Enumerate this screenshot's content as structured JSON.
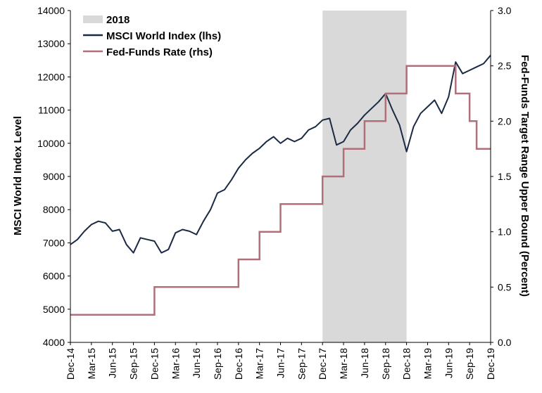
{
  "chart_data": {
    "type": "line",
    "ylabel": "MSCI World Index Level",
    "y2label": "Fed-Funds Target Range Upper Bound (Percent)",
    "ylim": [
      4000,
      14000
    ],
    "y2lim": [
      0.0,
      3.0
    ],
    "y_ticks": [
      "4000",
      "5000",
      "6000",
      "7000",
      "8000",
      "9000",
      "10000",
      "11000",
      "12000",
      "13000",
      "14000"
    ],
    "y2_ticks": [
      "0.0",
      "0.5",
      "1.0",
      "1.5",
      "2.0",
      "2.5",
      "3.0"
    ],
    "x_ticks": [
      "Dec-14",
      "Mar-15",
      "Jun-15",
      "Sep-15",
      "Dec-15",
      "Mar-16",
      "Jun-16",
      "Sep-16",
      "Dec-16",
      "Mar-17",
      "Jun-17",
      "Sep-17",
      "Dec-17",
      "Mar-18",
      "Jun-18",
      "Sep-18",
      "Dec-18",
      "Mar-19",
      "Jun-19",
      "Sep-19",
      "Dec-19"
    ],
    "legend_position": "top-left",
    "shaded_region": {
      "label": "2018",
      "start": "Dec-17",
      "end": "Dec-18",
      "color": "#d9d9d9"
    },
    "series": [
      {
        "name": "MSCI World Index (lhs)",
        "axis": "left",
        "color": "#1b2a44",
        "x": [
          "Dec-14",
          "Jan-15",
          "Feb-15",
          "Mar-15",
          "Apr-15",
          "May-15",
          "Jun-15",
          "Jul-15",
          "Aug-15",
          "Sep-15",
          "Oct-15",
          "Nov-15",
          "Dec-15",
          "Jan-16",
          "Feb-16",
          "Mar-16",
          "Apr-16",
          "May-16",
          "Jun-16",
          "Jul-16",
          "Aug-16",
          "Sep-16",
          "Oct-16",
          "Nov-16",
          "Dec-16",
          "Jan-17",
          "Feb-17",
          "Mar-17",
          "Apr-17",
          "May-17",
          "Jun-17",
          "Jul-17",
          "Aug-17",
          "Sep-17",
          "Oct-17",
          "Nov-17",
          "Dec-17",
          "Jan-18",
          "Feb-18",
          "Mar-18",
          "Apr-18",
          "May-18",
          "Jun-18",
          "Jul-18",
          "Aug-18",
          "Sep-18",
          "Oct-18",
          "Nov-18",
          "Dec-18",
          "Jan-19",
          "Feb-19",
          "Mar-19",
          "Apr-19",
          "May-19",
          "Jun-19",
          "Jul-19",
          "Aug-19",
          "Sep-19",
          "Oct-19",
          "Nov-19",
          "Dec-19"
        ],
        "values": [
          6950,
          7100,
          7350,
          7550,
          7650,
          7600,
          7350,
          7400,
          6950,
          6700,
          7150,
          7100,
          7050,
          6700,
          6800,
          7300,
          7400,
          7350,
          7250,
          7650,
          8000,
          8500,
          8600,
          8900,
          9250,
          9500,
          9700,
          9850,
          10050,
          10200,
          10000,
          10150,
          10050,
          10150,
          10400,
          10500,
          10700,
          10750,
          9950,
          10050,
          10400,
          10600,
          10850,
          11050,
          11250,
          11500,
          11000,
          10550,
          9750,
          10500,
          10900,
          11100,
          11300,
          10900,
          11400,
          12450,
          12100,
          12200,
          12300,
          12400,
          12650
        ]
      },
      {
        "name": "Fed-Funds Rate (rhs)",
        "axis": "right",
        "color": "#b0707a",
        "step_points": [
          [
            "Dec-14",
            0.25
          ],
          [
            "Dec-15",
            0.25
          ],
          [
            "Dec-15",
            0.5
          ],
          [
            "Dec-16",
            0.5
          ],
          [
            "Dec-16",
            0.75
          ],
          [
            "Mar-17",
            0.75
          ],
          [
            "Mar-17",
            1.0
          ],
          [
            "Jun-17",
            1.0
          ],
          [
            "Jun-17",
            1.25
          ],
          [
            "Dec-17",
            1.25
          ],
          [
            "Dec-17",
            1.5
          ],
          [
            "Mar-18",
            1.5
          ],
          [
            "Mar-18",
            1.75
          ],
          [
            "Jun-18",
            1.75
          ],
          [
            "Jun-18",
            2.0
          ],
          [
            "Sep-18",
            2.0
          ],
          [
            "Sep-18",
            2.25
          ],
          [
            "Dec-18",
            2.25
          ],
          [
            "Dec-18",
            2.5
          ],
          [
            "Jul-19",
            2.5
          ],
          [
            "Jul-19",
            2.25
          ],
          [
            "Sep-19",
            2.25
          ],
          [
            "Sep-19",
            2.0
          ],
          [
            "Oct-19",
            2.0
          ],
          [
            "Oct-19",
            1.75
          ],
          [
            "Dec-19",
            1.75
          ]
        ]
      }
    ]
  }
}
